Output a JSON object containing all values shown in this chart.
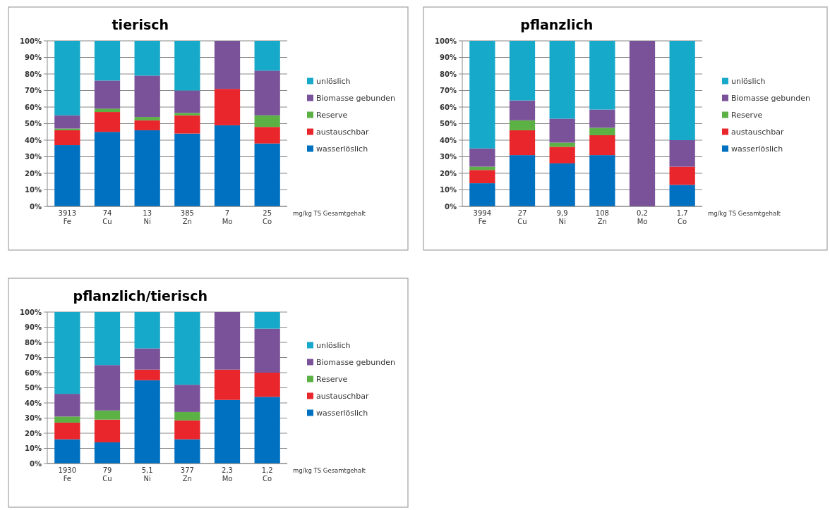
{
  "chart_data": [
    {
      "type": "bar",
      "title": "tierisch",
      "stacked": true,
      "grid": "y",
      "legend": "right",
      "categories": [
        "3913\nFe",
        "74\nCu",
        "13\nNi",
        "385\nZn",
        "7\nMo",
        "25\nCo"
      ],
      "ylim": [
        0,
        100
      ],
      "yticks": [
        {
          "value": 0,
          "label": "0%"
        },
        {
          "value": 10,
          "label": "10%"
        },
        {
          "value": 20,
          "label": "20%"
        },
        {
          "value": 30,
          "label": "30%"
        },
        {
          "value": 40,
          "label": "40%"
        },
        {
          "value": 50,
          "label": "50%"
        },
        {
          "value": 60,
          "label": "60%"
        },
        {
          "value": 70,
          "label": "70%"
        },
        {
          "value": 80,
          "label": "80%"
        },
        {
          "value": 90,
          "label": "90%"
        },
        {
          "value": 100,
          "label": "100%"
        }
      ],
      "annotations": [
        "mg/kg TS  Gesamtgehalt"
      ],
      "series": [
        {
          "name": "wasserlöslich",
          "color": "#0070c0",
          "values": [
            37,
            45,
            46,
            44,
            49,
            38
          ]
        },
        {
          "name": "austauschbar",
          "color": "#e8262b",
          "values": [
            9,
            12,
            6,
            11,
            22,
            10
          ]
        },
        {
          "name": "Reserve",
          "color": "#5cb145",
          "values": [
            1,
            2,
            2,
            1.5,
            0,
            7
          ]
        },
        {
          "name": "Biomasse gebunden",
          "color": "#7a529a",
          "values": [
            8,
            17,
            25,
            13.5,
            29,
            27
          ]
        },
        {
          "name": "unlöslich",
          "color": "#17a9c9",
          "values": [
            45,
            24,
            21,
            30,
            0,
            18
          ]
        }
      ]
    },
    {
      "type": "bar",
      "title": "pflanzlich",
      "stacked": true,
      "grid": "y",
      "legend": "right",
      "categories": [
        "3994\nFe",
        "27\nCu",
        "9,9\nNi",
        "108\nZn",
        "0,2\nMo",
        "1,7\nCo"
      ],
      "ylim": [
        0,
        100
      ],
      "yticks": [
        {
          "value": 0,
          "label": "0%"
        },
        {
          "value": 10,
          "label": "10%"
        },
        {
          "value": 20,
          "label": "20%"
        },
        {
          "value": 30,
          "label": "30%"
        },
        {
          "value": 40,
          "label": "40%"
        },
        {
          "value": 50,
          "label": "50%"
        },
        {
          "value": 60,
          "label": "60%"
        },
        {
          "value": 70,
          "label": "70%"
        },
        {
          "value": 80,
          "label": "80%"
        },
        {
          "value": 90,
          "label": "90%"
        },
        {
          "value": 100,
          "label": "100%"
        }
      ],
      "annotations": [
        "mg/kg TS  Gesamtgehalt"
      ],
      "series": [
        {
          "name": "wasserlöslich",
          "color": "#0070c0",
          "values": [
            14,
            31,
            26,
            31,
            0,
            13
          ]
        },
        {
          "name": "austauschbar",
          "color": "#e8262b",
          "values": [
            8,
            15,
            10,
            12,
            0,
            11
          ]
        },
        {
          "name": "Reserve",
          "color": "#5cb145",
          "values": [
            2,
            6,
            2.5,
            4.5,
            0,
            0
          ]
        },
        {
          "name": "Biomasse gebunden",
          "color": "#7a529a",
          "values": [
            11,
            12,
            14.5,
            11,
            100,
            16
          ]
        },
        {
          "name": "unlöslich",
          "color": "#17a9c9",
          "values": [
            65,
            36,
            47,
            41.5,
            0,
            60
          ]
        }
      ]
    },
    {
      "type": "bar",
      "title": "pflanzlich/tierisch",
      "stacked": true,
      "grid": "y",
      "legend": "right",
      "categories": [
        "1930\nFe",
        "79\nCu",
        "5,1\nNi",
        "377\nZn",
        "2,3\nMo",
        "1,2\nCo"
      ],
      "ylim": [
        0,
        100
      ],
      "yticks": [
        {
          "value": 0,
          "label": "0%"
        },
        {
          "value": 10,
          "label": "10%"
        },
        {
          "value": 20,
          "label": "20%"
        },
        {
          "value": 30,
          "label": "30%"
        },
        {
          "value": 40,
          "label": "40%"
        },
        {
          "value": 50,
          "label": "50%"
        },
        {
          "value": 60,
          "label": "60%"
        },
        {
          "value": 70,
          "label": "70%"
        },
        {
          "value": 80,
          "label": "80%"
        },
        {
          "value": 90,
          "label": "90%"
        },
        {
          "value": 100,
          "label": "100%"
        }
      ],
      "annotations": [
        "mg/kg TS  Gesamtgehalt"
      ],
      "series": [
        {
          "name": "wasserlöslich",
          "color": "#0070c0",
          "values": [
            16,
            14,
            55,
            16,
            42,
            44
          ]
        },
        {
          "name": "austauschbar",
          "color": "#e8262b",
          "values": [
            11,
            15,
            7,
            12.5,
            20,
            16
          ]
        },
        {
          "name": "Reserve",
          "color": "#5cb145",
          "values": [
            4,
            6,
            0,
            5.5,
            0,
            0
          ]
        },
        {
          "name": "Biomasse gebunden",
          "color": "#7a529a",
          "values": [
            15,
            30,
            14,
            18,
            38,
            29
          ]
        },
        {
          "name": "unlöslich",
          "color": "#17a9c9",
          "values": [
            54,
            35,
            24,
            48,
            0,
            11
          ]
        }
      ]
    }
  ]
}
